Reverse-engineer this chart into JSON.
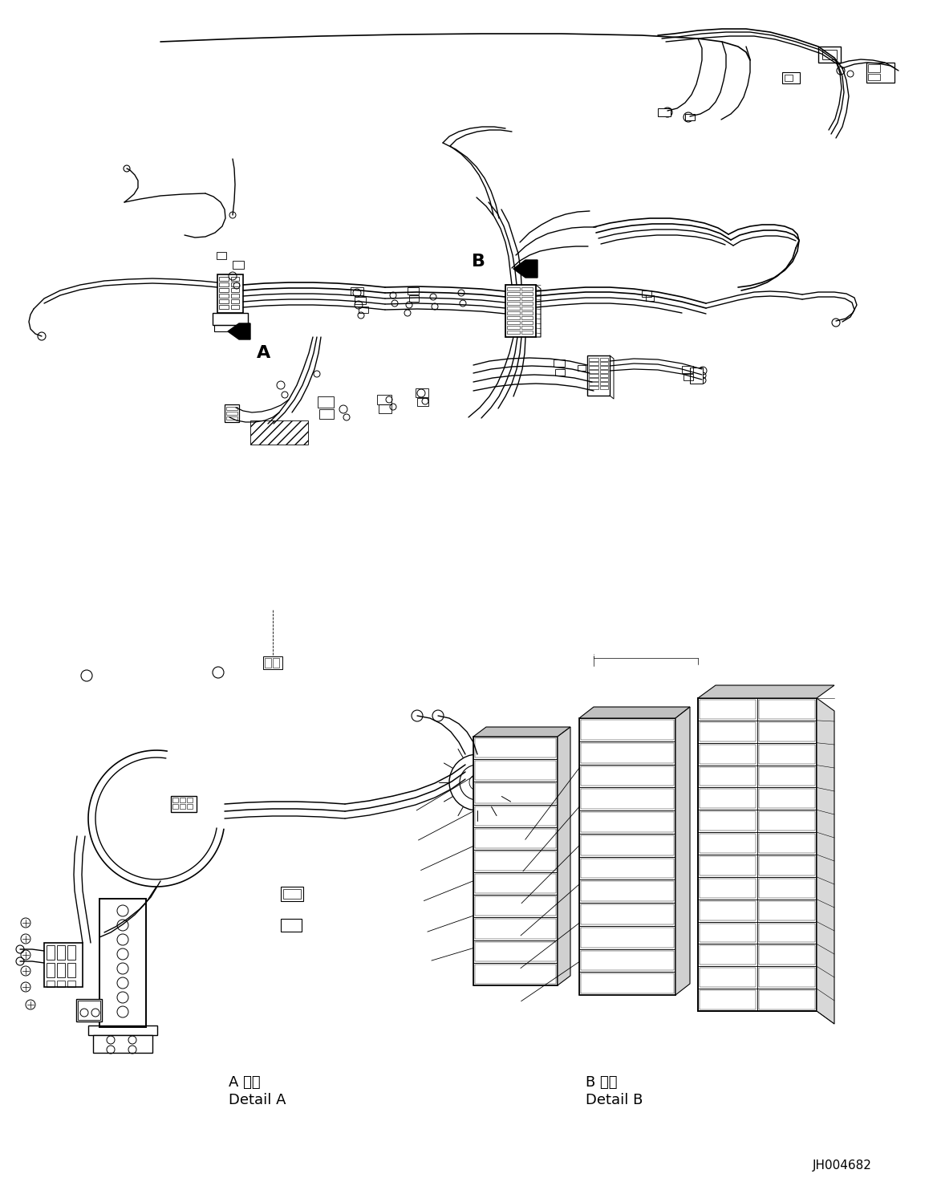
{
  "figure_id": "JH004682",
  "background_color": "#ffffff",
  "line_color": "#000000",
  "fig_width": 11.63,
  "fig_height": 14.88,
  "dpi": 100,
  "label_A_japanese": "A 詳細",
  "label_A_english": "Detail A",
  "label_B_japanese": "B 詳細",
  "label_B_english": "Detail B",
  "callout_A": "A",
  "callout_B": "B",
  "part_number": "JH004682"
}
